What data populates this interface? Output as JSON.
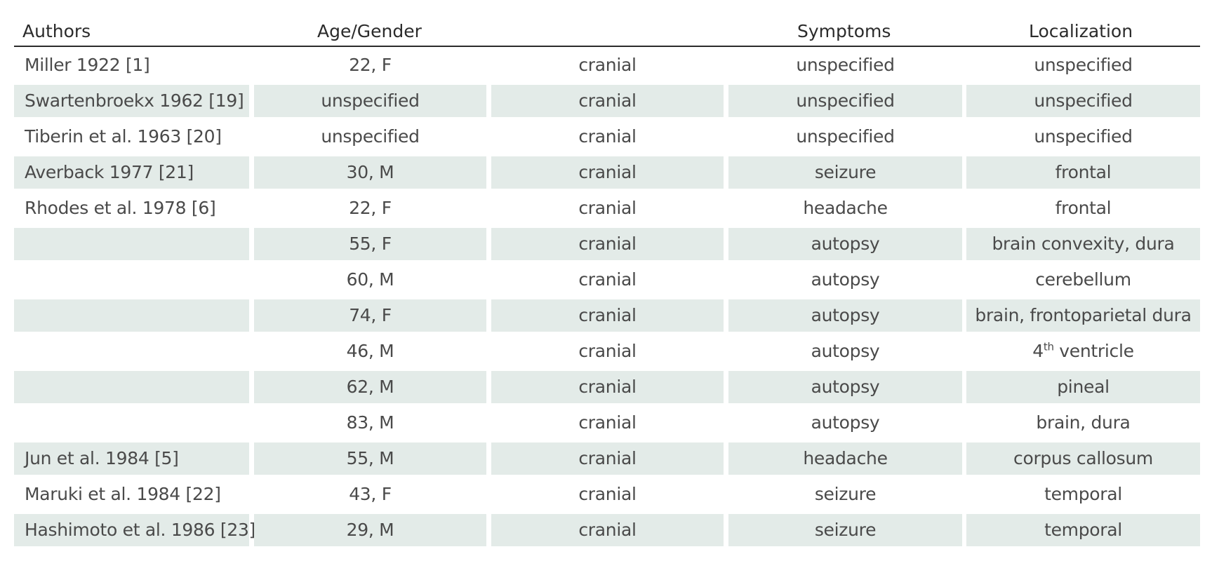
{
  "table": {
    "headers": [
      "Authors",
      "Age/Gender",
      "",
      "Symptoms",
      "Localization"
    ],
    "rows": [
      {
        "authors": "Miller 1922 [1]",
        "age_gender": "22, F",
        "site": "cranial",
        "symptoms": "unspecified",
        "localization": "unspecified",
        "shaded": false
      },
      {
        "authors": "Swartenbroekx 1962 [19]",
        "age_gender": "unspecified",
        "site": "cranial",
        "symptoms": "unspecified",
        "localization": "unspecified",
        "shaded": true
      },
      {
        "authors": "Tiberin et al. 1963 [20]",
        "age_gender": "unspecified",
        "site": "cranial",
        "symptoms": "unspecified",
        "localization": "unspecified",
        "shaded": false
      },
      {
        "authors": "Averback 1977 [21]",
        "age_gender": "30, M",
        "site": "cranial",
        "symptoms": "seizure",
        "localization": "frontal",
        "shaded": true
      },
      {
        "authors": "Rhodes et al. 1978 [6]",
        "age_gender": "22, F",
        "site": "cranial",
        "symptoms": "headache",
        "localization": "frontal",
        "shaded": false
      },
      {
        "authors": "",
        "age_gender": "55, F",
        "site": "cranial",
        "symptoms": "autopsy",
        "localization": "brain convexity, dura",
        "shaded": true
      },
      {
        "authors": "",
        "age_gender": "60, M",
        "site": "cranial",
        "symptoms": "autopsy",
        "localization": "cerebellum",
        "shaded": false
      },
      {
        "authors": "",
        "age_gender": "74, F",
        "site": "cranial",
        "symptoms": "autopsy",
        "localization": "brain, frontoparietal dura",
        "shaded": true
      },
      {
        "authors": "",
        "age_gender": "46, M",
        "site": "cranial",
        "symptoms": "autopsy",
        "localization": "4th ventricle",
        "loc_base": "4",
        "loc_sup": "th",
        "loc_rest": " ventricle",
        "shaded": false
      },
      {
        "authors": "",
        "age_gender": "62, M",
        "site": "cranial",
        "symptoms": "autopsy",
        "localization": "pineal",
        "shaded": true
      },
      {
        "authors": "",
        "age_gender": "83, M",
        "site": "cranial",
        "symptoms": "autopsy",
        "localization": "brain, dura",
        "shaded": false
      },
      {
        "authors": "Jun et al. 1984 [5]",
        "age_gender": "55, M",
        "site": "cranial",
        "symptoms": "headache",
        "localization": "corpus callosum",
        "shaded": true
      },
      {
        "authors": "Maruki et al. 1984 [22]",
        "age_gender": "43, F",
        "site": "cranial",
        "symptoms": "seizure",
        "localization": "temporal",
        "shaded": false
      },
      {
        "authors": "Hashimoto et al. 1986 [23]",
        "age_gender": "29, M",
        "site": "cranial",
        "symptoms": "seizure",
        "localization": "temporal",
        "shaded": true
      }
    ]
  },
  "colors": {
    "shade": "#e3ebe8",
    "header_rule": "#2b2b2b",
    "text": "#4a4a4a"
  }
}
